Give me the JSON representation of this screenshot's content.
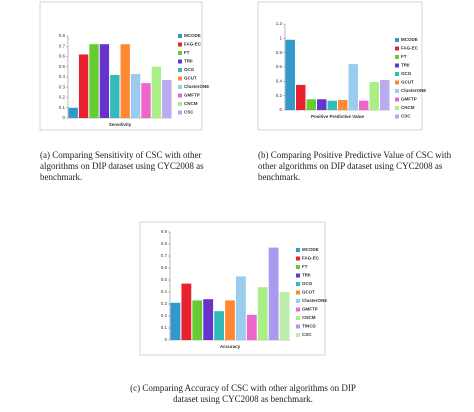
{
  "chart_data": [
    {
      "type": "bar",
      "x_label": "Sensitivity",
      "caption": "(a) Comparing Sensitivity of CSC with other algorithms on DIP dataset using CYC2008 as benchmark.",
      "categories": [
        "MCODE",
        "FAG-EC",
        "FT",
        "TRII",
        "OCG",
        "GCUT",
        "ClusterONE",
        "GMFTP",
        "CNCM",
        "CSC"
      ],
      "values": [
        0.1,
        0.62,
        0.72,
        0.72,
        0.42,
        0.72,
        0.43,
        0.34,
        0.5,
        0.37
      ],
      "colors": [
        "#3399cc",
        "#e8212e",
        "#66cc33",
        "#6633cc",
        "#33bbbb",
        "#ff8833",
        "#99ccee",
        "#ee66cc",
        "#aaee88",
        "#bbaaee"
      ],
      "ylim": [
        0,
        0.8
      ],
      "yticks": [
        0,
        0.1,
        0.2,
        0.3,
        0.4,
        0.5,
        0.6,
        0.7,
        0.8
      ]
    },
    {
      "type": "bar",
      "x_label": "Positive Predictive Value",
      "caption": "(b) Comparing Positive Predictive Value of CSC with other algorithms on DIP dataset using CYC2008 as benchmark.",
      "categories": [
        "MCODE",
        "FAG-EC",
        "FT",
        "TRII",
        "OCG",
        "GCUT",
        "ClusterONE",
        "GMFTP",
        "CNCM",
        "CSC"
      ],
      "values": [
        0.98,
        0.35,
        0.15,
        0.15,
        0.13,
        0.14,
        0.64,
        0.13,
        0.39,
        0.42
      ],
      "colors": [
        "#3399cc",
        "#e8212e",
        "#66cc33",
        "#6633cc",
        "#33bbbb",
        "#ff8833",
        "#99ccee",
        "#ee66cc",
        "#aaee88",
        "#bbaaee"
      ],
      "ylim": [
        0,
        1.2
      ],
      "yticks": [
        0,
        0.2,
        0.4,
        0.6,
        0.8,
        1,
        1.2
      ]
    },
    {
      "type": "bar",
      "x_label": "Accuracy",
      "caption": "(c) Comparing Accuracy of CSC with other algorithms on DIP dataset using CYC2008 as benchmark.",
      "categories": [
        "MCODE",
        "FAG-EC",
        "FT",
        "TRII",
        "OCG",
        "GCUT",
        "ClusterONE",
        "GMFTP",
        "CNCM",
        "TINCD",
        "CSC"
      ],
      "values": [
        0.31,
        0.47,
        0.33,
        0.34,
        0.24,
        0.33,
        0.53,
        0.21,
        0.44,
        0.77,
        0.4
      ],
      "colors": [
        "#3399cc",
        "#e8212e",
        "#66cc33",
        "#6633cc",
        "#33bbbb",
        "#ff8833",
        "#99ccee",
        "#ee66cc",
        "#aaee88",
        "#aa99ee",
        "#bbeeaa"
      ],
      "ylim": [
        0,
        0.9
      ],
      "yticks": [
        0,
        0.1,
        0.2,
        0.3,
        0.4,
        0.5,
        0.6,
        0.7,
        0.8,
        0.9
      ]
    }
  ]
}
